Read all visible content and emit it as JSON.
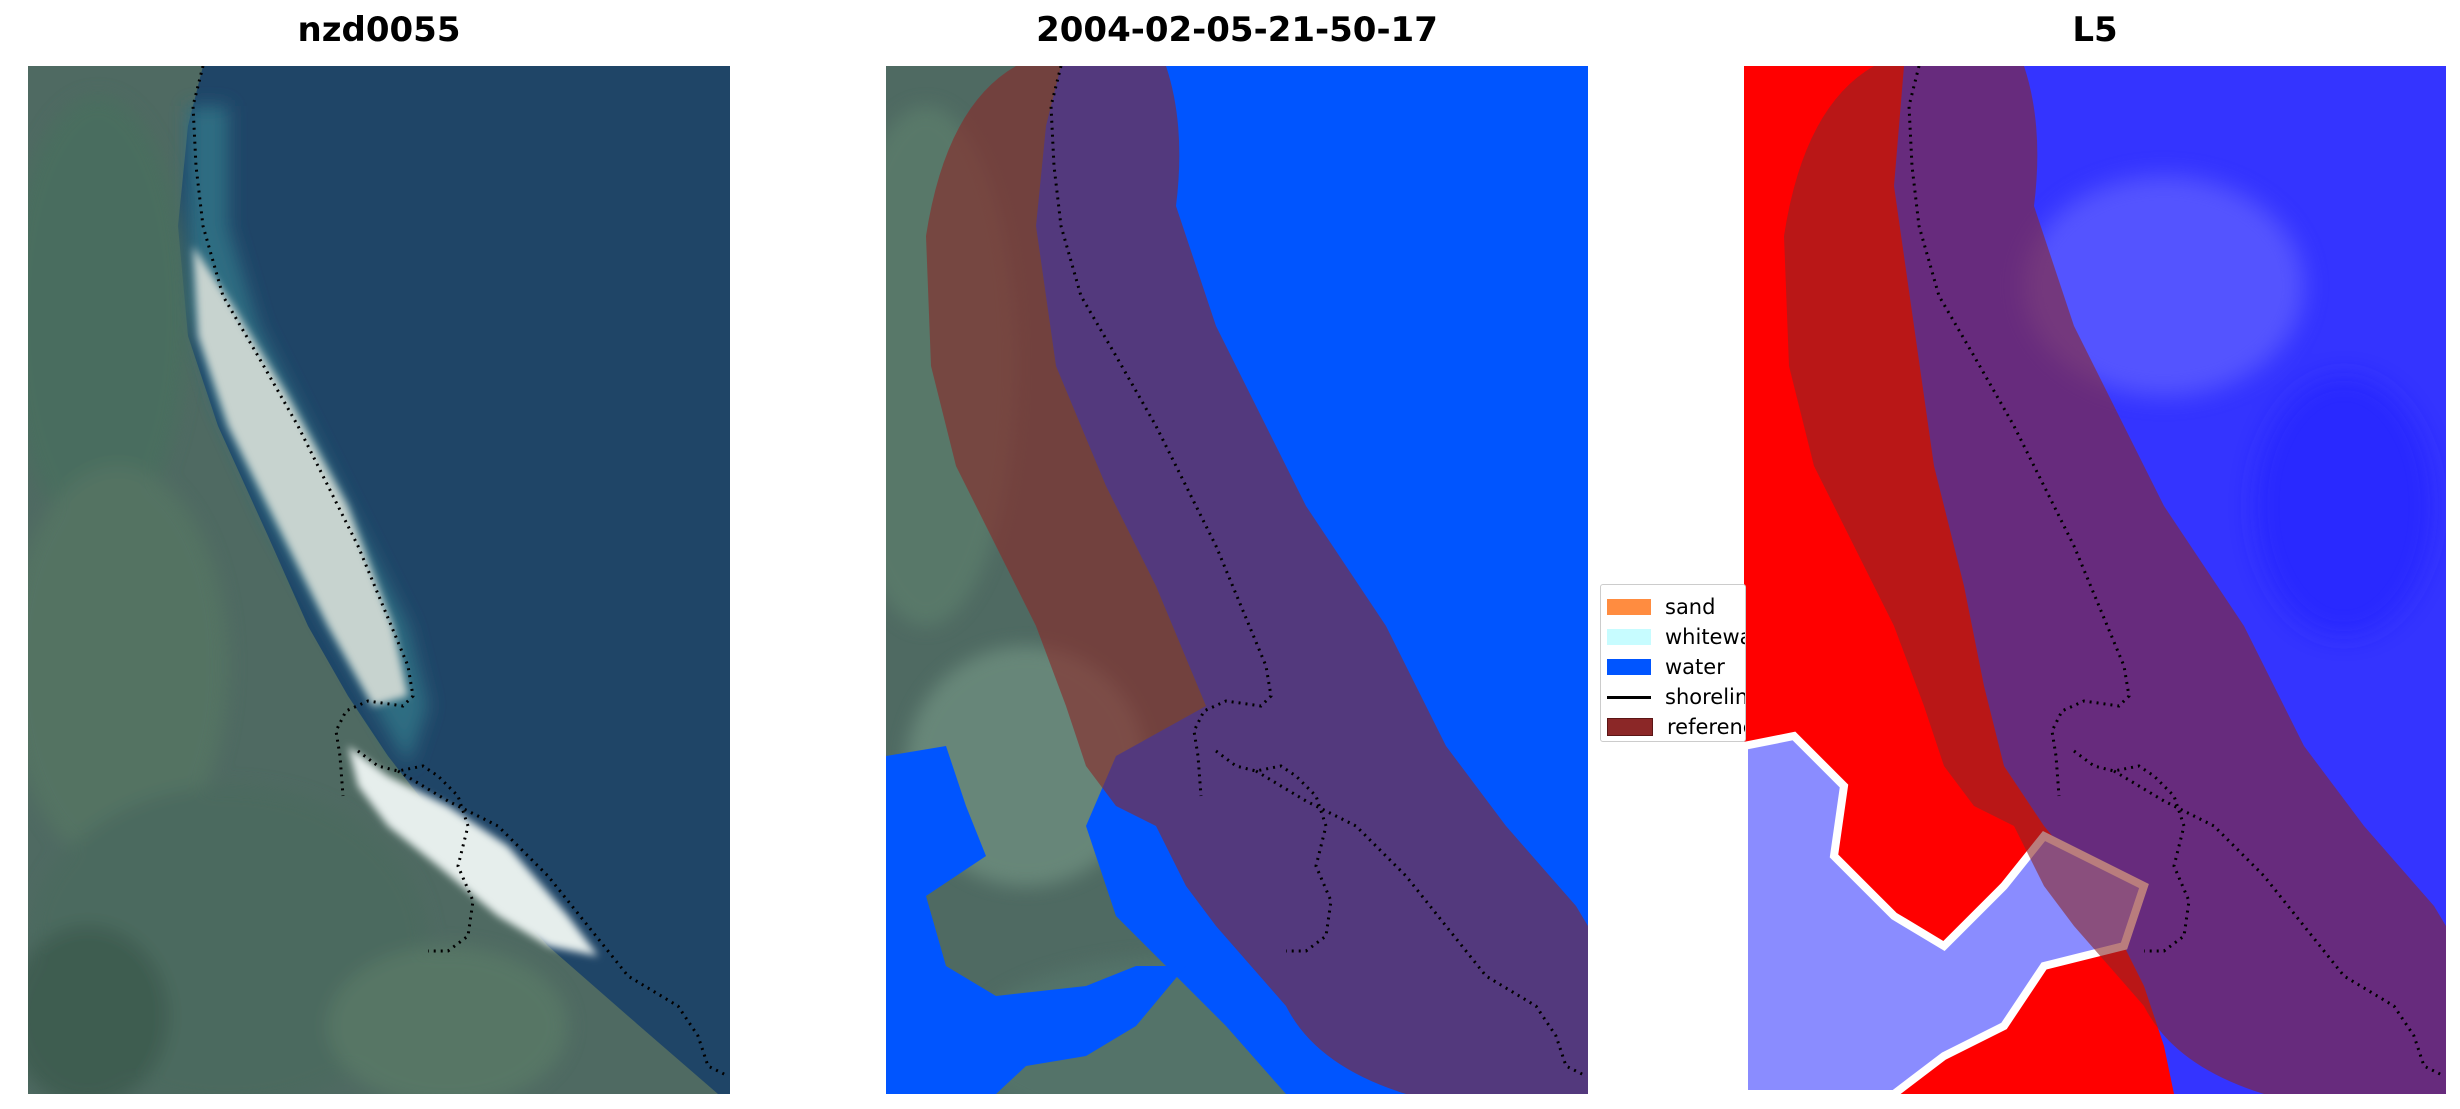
{
  "panels": [
    {
      "id": "rgb",
      "title": "nzd0055"
    },
    {
      "id": "classification",
      "title": "2004-02-05-21-50-17"
    },
    {
      "id": "index",
      "title": "L5"
    }
  ],
  "legend": {
    "items": [
      {
        "label": "sand",
        "color": "#ff8c40"
      },
      {
        "label": "whitewa",
        "color": "#c7fcff"
      },
      {
        "label": "water",
        "color": "#0055ff"
      },
      {
        "label": "shorelin",
        "color": "#000000"
      },
      {
        "label": "referenc",
        "color": "#8b2727"
      }
    ]
  },
  "colors": {
    "water_class": "#0055ff",
    "reference_buffer": "#8b2727",
    "shoreline": "#000000"
  }
}
